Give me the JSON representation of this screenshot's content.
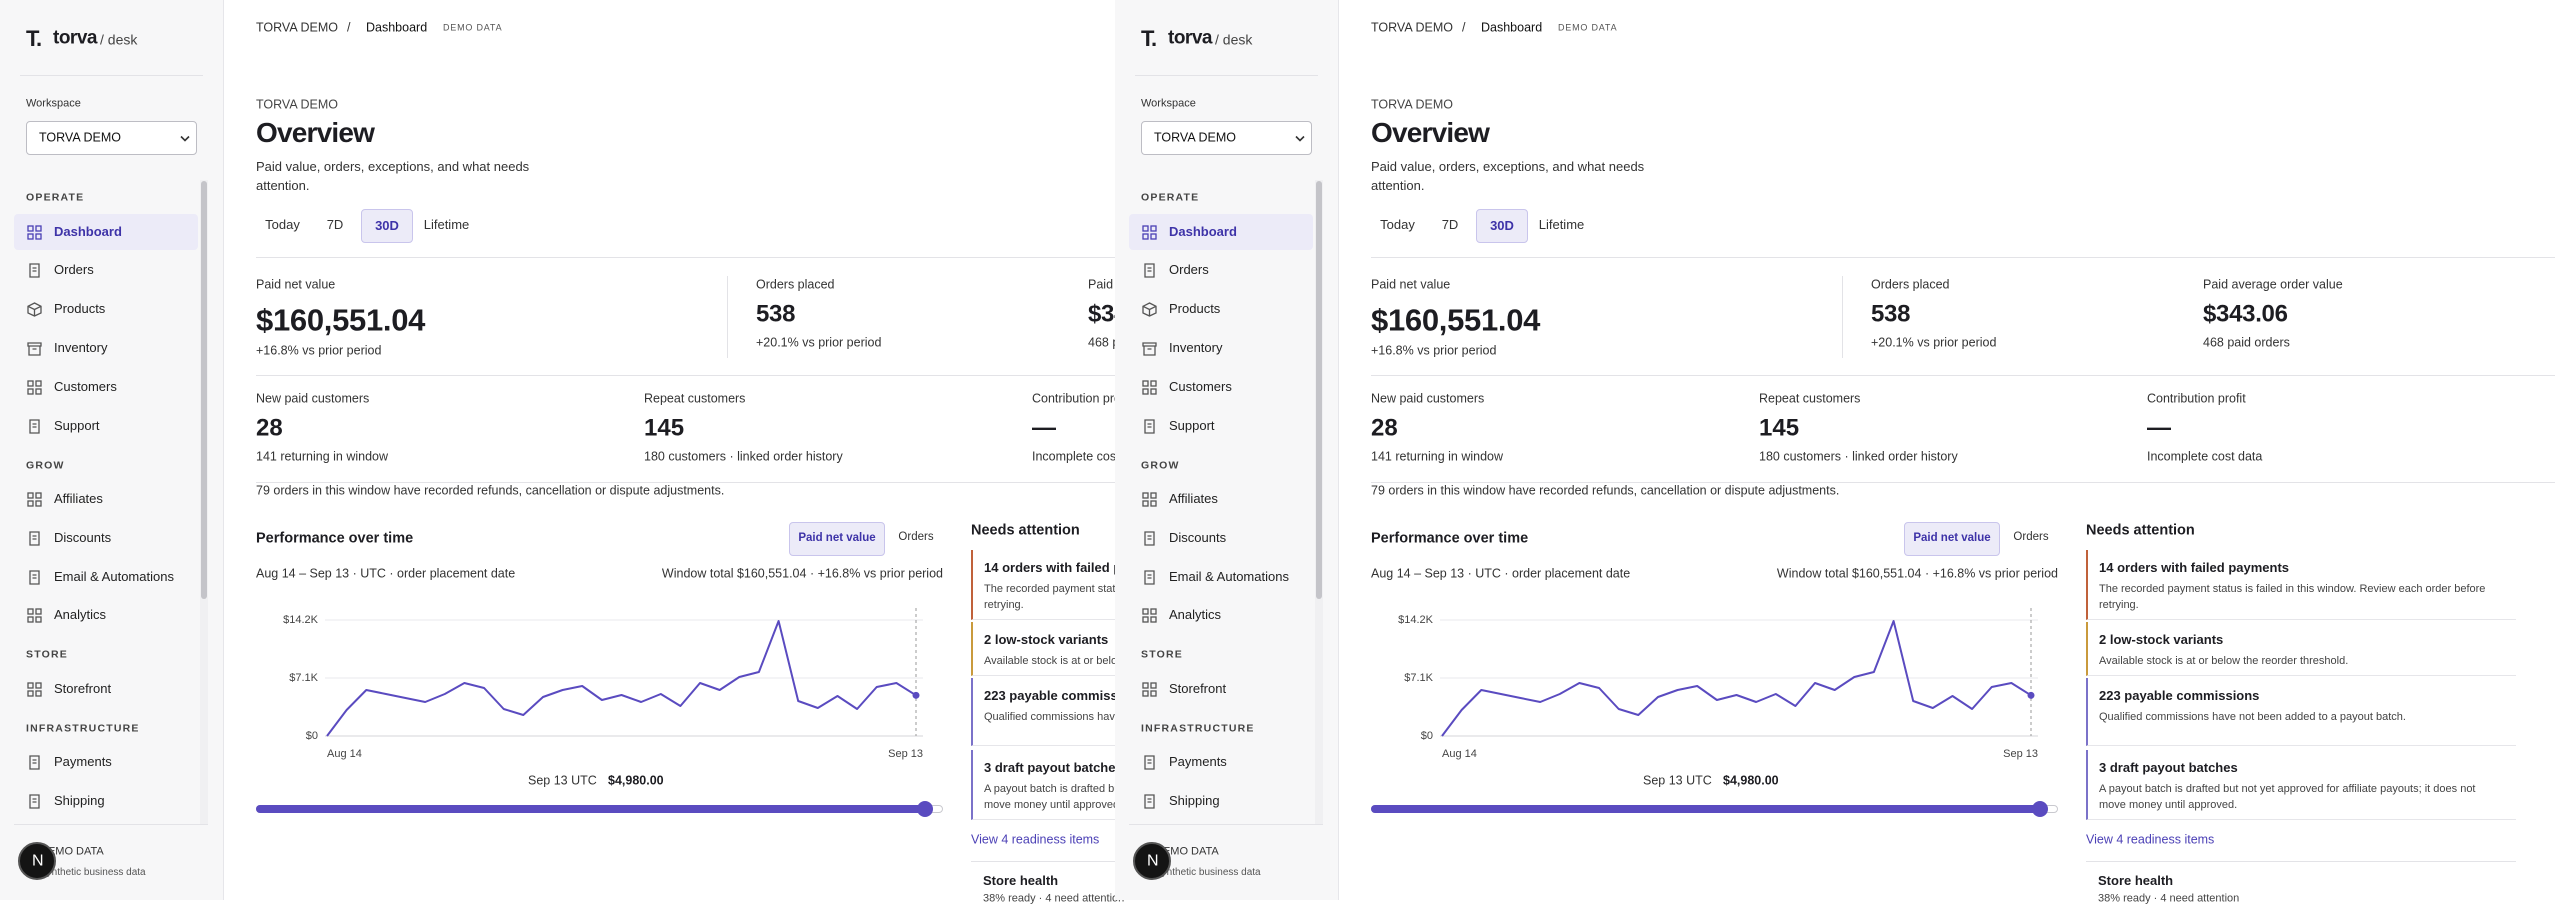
{
  "brand": {
    "mark": "T.",
    "name": "torva",
    "suffix": "/ desk"
  },
  "sidebar": {
    "workspace_label": "Workspace",
    "workspace": "TORVA DEMO",
    "active": {
      "section": 0,
      "item": 0
    },
    "sections": [
      {
        "title": "OPERATE",
        "items": [
          "Dashboard",
          "Orders",
          "Products",
          "Inventory",
          "Customers",
          "Support"
        ]
      },
      {
        "title": "GROW",
        "items": [
          "Affiliates",
          "Discounts",
          "Email & Automations",
          "Analytics"
        ]
      },
      {
        "title": "STORE",
        "items": [
          "Storefront"
        ]
      },
      {
        "title": "INFRASTRUCTURE",
        "items": [
          "Payments",
          "Shipping"
        ]
      }
    ],
    "footer": {
      "title": "DEMO DATA",
      "subtitle": "Synthetic business data",
      "avatar": "N"
    }
  },
  "breadcrumb": {
    "items": [
      "TORVA DEMO",
      "Dashboard"
    ],
    "separator": "/",
    "tag": "DEMO DATA"
  },
  "header": {
    "eyebrow": "TORVA DEMO",
    "title": "Overview",
    "subtitle": "Paid value, orders, exceptions, and what needs attention."
  },
  "tabs": {
    "items": [
      "Today",
      "7D",
      "30D",
      "Lifetime"
    ],
    "active": 2
  },
  "kpis": [
    {
      "label": "Paid net value",
      "value": "$160,551.04",
      "note": "+16.8% vs prior period"
    },
    {
      "label": "Orders placed",
      "value": "538",
      "note": "+20.1% vs prior period"
    },
    {
      "label": "Paid average order value",
      "value": "$343.06",
      "note": "468 paid orders"
    }
  ],
  "kpis_secondary": [
    {
      "label": "New paid customers",
      "value": "28",
      "note": "141 returning in window"
    },
    {
      "label": "Repeat customers",
      "value": "145",
      "note": "180 customers · linked order history"
    },
    {
      "label": "Contribution profit",
      "value": "—",
      "note": "Incomplete cost data"
    }
  ],
  "adjustment_note": "79 orders in this window have recorded refunds, cancellation or dispute adjustments.",
  "chart_data": {
    "type": "line",
    "title": "Performance over time",
    "toggles": [
      "Paid net value",
      "Orders"
    ],
    "active_toggle": 0,
    "subtitle": "Aug 14 – Sep 13 · UTC · order placement date",
    "summary": "Window total $160,551.04 · +16.8% vs prior period",
    "categories": [
      "Aug 14",
      null,
      null,
      null,
      null,
      null,
      null,
      null,
      null,
      null,
      null,
      null,
      null,
      null,
      null,
      null,
      null,
      null,
      null,
      null,
      null,
      null,
      null,
      null,
      null,
      null,
      null,
      null,
      null,
      null,
      "Sep 13"
    ],
    "series": [
      {
        "name": "Paid net value",
        "color": "#5a4bc0",
        "values": [
          0,
          3180,
          5630,
          5140,
          4650,
          4160,
          5140,
          6490,
          5880,
          3300,
          2570,
          4770,
          5630,
          6120,
          4410,
          5020,
          4160,
          5140,
          3670,
          6490,
          5630,
          7220,
          7830,
          14080,
          4280,
          3430,
          4900,
          3300,
          6000,
          6490,
          4980
        ]
      }
    ],
    "ylim": [
      0,
      14200
    ],
    "yticks": [
      {
        "value": 0,
        "label": "$0"
      },
      {
        "value": 7100,
        "label": "$7.1K"
      },
      {
        "value": 14200,
        "label": "$14.2K"
      }
    ],
    "grid": true,
    "selected": {
      "index": 30,
      "date": "Sep 13 UTC",
      "value_label": "$4,980.00"
    }
  },
  "attention": {
    "title": "Needs attention",
    "items": [
      {
        "title": "14 orders with failed payments",
        "text": "The recorded payment status is failed in this window. Review each order before retrying.",
        "color": "#c0613a"
      },
      {
        "title": "2 low-stock variants",
        "text": "Available stock is at or below the reorder threshold.",
        "color": "#c99a3c"
      },
      {
        "title": "223 payable commissions",
        "text": "Qualified commissions have not been added to a payout batch.",
        "color": "#7b72c9"
      },
      {
        "title": "3 draft payout batches",
        "text": "A payout batch is drafted but not yet approved for affiliate payouts; it does not move money until approved.",
        "color": "#7b72c9"
      }
    ],
    "link": "View 4 readiness items",
    "health_title": "Store health",
    "health_text": "38% ready · 4 need attention"
  }
}
